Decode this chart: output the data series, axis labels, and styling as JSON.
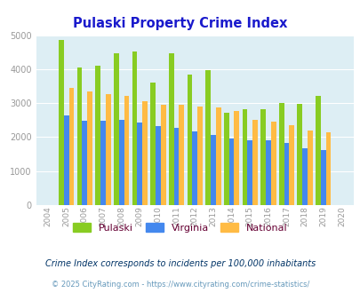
{
  "title": "Pulaski Property Crime Index",
  "title_color": "#1a1acc",
  "years": [
    2004,
    2005,
    2006,
    2007,
    2008,
    2009,
    2010,
    2011,
    2012,
    2013,
    2014,
    2015,
    2016,
    2017,
    2018,
    2019,
    2020
  ],
  "pulaski": [
    0,
    4850,
    4060,
    4110,
    4470,
    4510,
    3610,
    4470,
    3830,
    3970,
    2710,
    2810,
    2830,
    3010,
    2990,
    3210,
    0
  ],
  "virginia": [
    0,
    2630,
    2480,
    2480,
    2520,
    2420,
    2320,
    2260,
    2160,
    2070,
    1970,
    1900,
    1900,
    1830,
    1670,
    1630,
    0
  ],
  "national": [
    0,
    3460,
    3340,
    3260,
    3220,
    3050,
    2960,
    2950,
    2900,
    2870,
    2760,
    2500,
    2460,
    2360,
    2200,
    2140,
    0
  ],
  "pulaski_color": "#88cc22",
  "virginia_color": "#4488ee",
  "national_color": "#ffbb44",
  "bg_color": "#ddeef4",
  "ylim": [
    0,
    5000
  ],
  "yticks": [
    0,
    1000,
    2000,
    3000,
    4000,
    5000
  ],
  "legend_labels": [
    "Pulaski",
    "Virginia",
    "National"
  ],
  "legend_label_color": "#660033",
  "footnote1": "Crime Index corresponds to incidents per 100,000 inhabitants",
  "footnote2": "© 2025 CityRating.com - https://www.cityrating.com/crime-statistics/",
  "footnote1_color": "#003366",
  "footnote2_color": "#6699bb"
}
